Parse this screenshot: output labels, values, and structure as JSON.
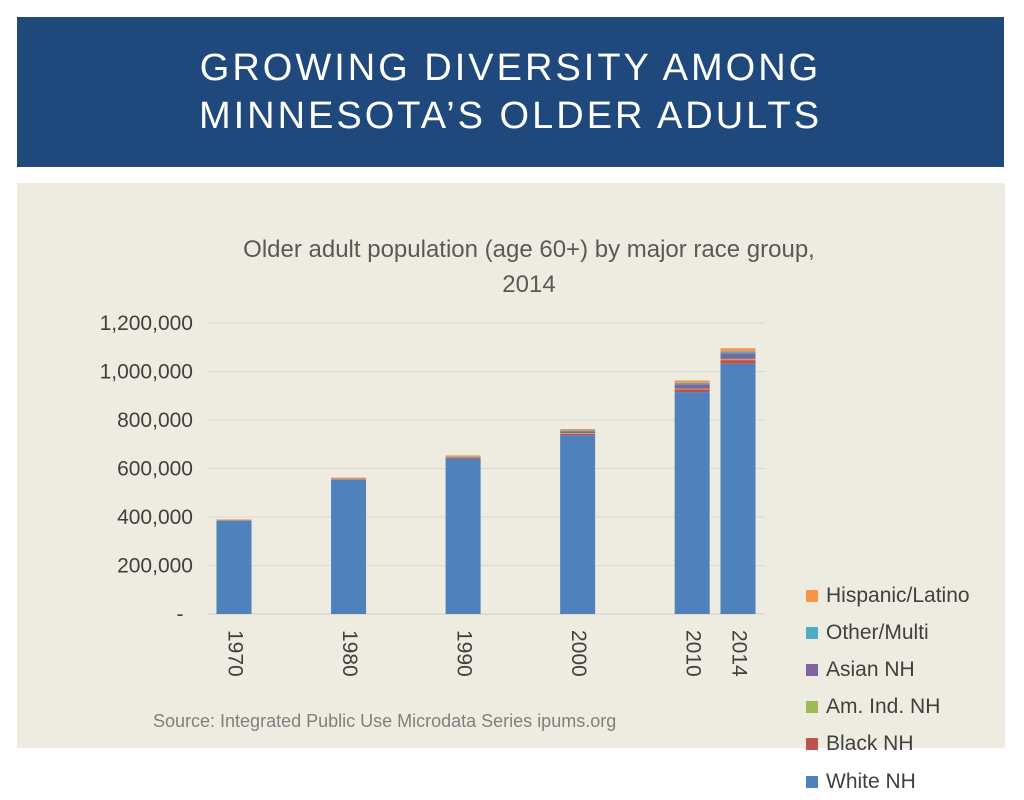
{
  "title": {
    "line1": "GROWING DIVERSITY AMONG",
    "line2": "MINNESOTA’S OLDER ADULTS"
  },
  "chart_data": {
    "type": "bar",
    "stacked": true,
    "title_line1": "Older adult population (age 60+) by major race group,",
    "title_line2": "2014",
    "categories": [
      "1970",
      "1980",
      "1990",
      "2000",
      "2010",
      "2014"
    ],
    "series": [
      {
        "name": "White NH",
        "color": "#4f81bd",
        "values": [
          385000,
          553000,
          640000,
          737000,
          915000,
          1032000
        ]
      },
      {
        "name": "Black NH",
        "color": "#c0504d",
        "values": [
          1500,
          2500,
          3500,
          6000,
          11000,
          15000
        ]
      },
      {
        "name": "Am. Ind. NH",
        "color": "#9bbb59",
        "values": [
          1000,
          1500,
          2000,
          3000,
          4000,
          5000
        ]
      },
      {
        "name": "Asian NH",
        "color": "#8064a2",
        "values": [
          500,
          1500,
          3000,
          7000,
          17000,
          23000
        ]
      },
      {
        "name": "Other/Multi",
        "color": "#4bacc6",
        "values": [
          500,
          1000,
          1500,
          3500,
          6000,
          8000
        ]
      },
      {
        "name": "Hispanic/Latino",
        "color": "#f79646",
        "values": [
          2000,
          3000,
          4000,
          6500,
          10000,
          13000
        ]
      }
    ],
    "ylim": [
      0,
      1200000
    ],
    "yticks": [
      {
        "value": 0,
        "label": "-"
      },
      {
        "value": 200000,
        "label": "200,000"
      },
      {
        "value": 400000,
        "label": "400,000"
      },
      {
        "value": 600000,
        "label": "600,000"
      },
      {
        "value": 800000,
        "label": "800,000"
      },
      {
        "value": 1000000,
        "label": "1,000,000"
      },
      {
        "value": 1200000,
        "label": "1,200,000"
      }
    ],
    "xticks_year_position": [
      1970,
      1980,
      1990,
      2000,
      2010,
      2014
    ],
    "grid": true,
    "legend_position": "right",
    "source": "Source: Integrated Public Use Microdata Series ipums.org"
  }
}
